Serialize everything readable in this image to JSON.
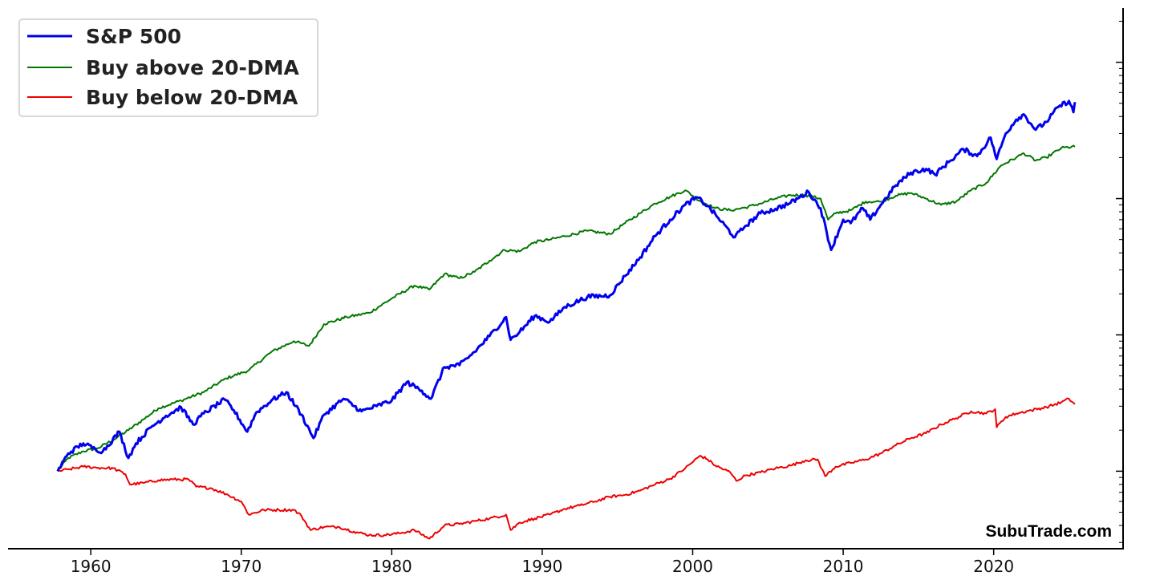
{
  "chart_data": {
    "type": "line",
    "title": "",
    "xlabel": "",
    "ylabel": "",
    "x_range": [
      1954.5,
      2028.6
    ],
    "y_scale": "log",
    "y_range": [
      0.27,
      2500
    ],
    "y_ticks_right": [
      1,
      10,
      100,
      1000
    ],
    "y_tick_labels_shown": false,
    "x_ticks": [
      1960,
      1970,
      1980,
      1990,
      2000,
      2010,
      2020
    ],
    "x_tick_labels": [
      "1960",
      "1970",
      "1980",
      "1990",
      "2000",
      "2010",
      "2020"
    ],
    "grid": false,
    "legend_position": "top-left",
    "watermark": "SubuTrade.com",
    "series": [
      {
        "name": "S&P 500",
        "color": "#0000ee",
        "line_weight": "thick",
        "points": [
          [
            1957.8,
            1.0
          ],
          [
            1958.5,
            1.35
          ],
          [
            1959.5,
            1.6
          ],
          [
            1960.3,
            1.45
          ],
          [
            1960.8,
            1.4
          ],
          [
            1961.9,
            1.95
          ],
          [
            1962.5,
            1.25
          ],
          [
            1963.0,
            1.6
          ],
          [
            1964.0,
            2.1
          ],
          [
            1965.0,
            2.55
          ],
          [
            1966.0,
            2.95
          ],
          [
            1966.8,
            2.2
          ],
          [
            1967.5,
            2.65
          ],
          [
            1968.9,
            3.35
          ],
          [
            1969.5,
            2.8
          ],
          [
            1970.4,
            1.95
          ],
          [
            1971.0,
            2.7
          ],
          [
            1972.0,
            3.3
          ],
          [
            1973.0,
            3.8
          ],
          [
            1974.0,
            2.6
          ],
          [
            1974.8,
            1.75
          ],
          [
            1975.5,
            2.6
          ],
          [
            1976.8,
            3.4
          ],
          [
            1978.0,
            2.75
          ],
          [
            1979.0,
            3.0
          ],
          [
            1980.0,
            3.3
          ],
          [
            1981.0,
            4.5
          ],
          [
            1982.0,
            3.9
          ],
          [
            1982.6,
            3.4
          ],
          [
            1983.5,
            5.8
          ],
          [
            1984.5,
            6.0
          ],
          [
            1985.5,
            7.5
          ],
          [
            1986.5,
            9.8
          ],
          [
            1987.6,
            13.5
          ],
          [
            1987.9,
            9.2
          ],
          [
            1988.5,
            10.5
          ],
          [
            1989.5,
            13.8
          ],
          [
            1990.5,
            12.5
          ],
          [
            1991.5,
            16.0
          ],
          [
            1993.0,
            19.0
          ],
          [
            1994.5,
            19.5
          ],
          [
            1995.5,
            27.0
          ],
          [
            1996.5,
            37.0
          ],
          [
            1997.5,
            53.0
          ],
          [
            1998.5,
            70.0
          ],
          [
            1999.5,
            90.0
          ],
          [
            2000.3,
            102.0
          ],
          [
            2001.0,
            88.0
          ],
          [
            2001.7,
            72.0
          ],
          [
            2002.8,
            52.0
          ],
          [
            2003.5,
            63.0
          ],
          [
            2004.5,
            78.0
          ],
          [
            2005.5,
            84.0
          ],
          [
            2006.5,
            93.0
          ],
          [
            2007.7,
            112.0
          ],
          [
            2008.5,
            85.0
          ],
          [
            2009.2,
            42.0
          ],
          [
            2010.0,
            70.0
          ],
          [
            2010.5,
            66.0
          ],
          [
            2011.3,
            85.0
          ],
          [
            2011.8,
            70.0
          ],
          [
            2012.5,
            90.0
          ],
          [
            2013.5,
            125.0
          ],
          [
            2014.5,
            155.0
          ],
          [
            2015.5,
            165.0
          ],
          [
            2016.1,
            150.0
          ],
          [
            2017.0,
            185.0
          ],
          [
            2018.0,
            230.0
          ],
          [
            2018.9,
            205.0
          ],
          [
            2019.8,
            280.0
          ],
          [
            2020.2,
            195.0
          ],
          [
            2020.8,
            300.0
          ],
          [
            2021.5,
            380.0
          ],
          [
            2022.0,
            415.0
          ],
          [
            2022.8,
            320.0
          ],
          [
            2023.5,
            365.0
          ],
          [
            2024.3,
            470.0
          ],
          [
            2025.0,
            520.0
          ],
          [
            2025.3,
            430.0
          ],
          [
            2025.4,
            510.0
          ]
        ]
      },
      {
        "name": "Buy above 20-DMA",
        "color": "#007700",
        "line_weight": "normal",
        "points": [
          [
            1957.8,
            1.0
          ],
          [
            1958.5,
            1.25
          ],
          [
            1959.5,
            1.4
          ],
          [
            1960.5,
            1.48
          ],
          [
            1961.5,
            1.7
          ],
          [
            1962.5,
            2.0
          ],
          [
            1963.5,
            2.4
          ],
          [
            1964.5,
            2.9
          ],
          [
            1966.0,
            3.3
          ],
          [
            1967.5,
            3.8
          ],
          [
            1969.0,
            4.8
          ],
          [
            1970.5,
            5.5
          ],
          [
            1972.0,
            7.5
          ],
          [
            1973.5,
            9.0
          ],
          [
            1974.5,
            8.3
          ],
          [
            1975.5,
            12.0
          ],
          [
            1977.0,
            13.5
          ],
          [
            1978.5,
            14.5
          ],
          [
            1980.0,
            18.5
          ],
          [
            1981.5,
            23.0
          ],
          [
            1982.5,
            21.5
          ],
          [
            1983.5,
            28.0
          ],
          [
            1984.5,
            26.0
          ],
          [
            1985.5,
            29.0
          ],
          [
            1986.5,
            35.0
          ],
          [
            1987.5,
            42.0
          ],
          [
            1988.5,
            41.0
          ],
          [
            1989.5,
            48.0
          ],
          [
            1990.5,
            50.0
          ],
          [
            1991.5,
            53.0
          ],
          [
            1993.0,
            58.0
          ],
          [
            1994.5,
            55.0
          ],
          [
            1995.5,
            66.0
          ],
          [
            1996.5,
            78.0
          ],
          [
            1997.5,
            92.0
          ],
          [
            1998.5,
            103.0
          ],
          [
            1999.5,
            115.0
          ],
          [
            2000.5,
            96.0
          ],
          [
            2001.5,
            85.0
          ],
          [
            2002.5,
            82.0
          ],
          [
            2003.5,
            86.0
          ],
          [
            2004.5,
            92.0
          ],
          [
            2005.5,
            100.0
          ],
          [
            2006.5,
            106.0
          ],
          [
            2007.5,
            106.0
          ],
          [
            2008.5,
            100.0
          ],
          [
            2009.0,
            70.0
          ],
          [
            2009.5,
            78.0
          ],
          [
            2010.5,
            82.0
          ],
          [
            2011.5,
            95.0
          ],
          [
            2012.5,
            95.0
          ],
          [
            2013.5,
            105.0
          ],
          [
            2014.5,
            110.0
          ],
          [
            2015.5,
            100.0
          ],
          [
            2016.5,
            90.0
          ],
          [
            2017.5,
            95.0
          ],
          [
            2018.5,
            115.0
          ],
          [
            2019.5,
            130.0
          ],
          [
            2020.5,
            175.0
          ],
          [
            2021.5,
            200.0
          ],
          [
            2022.0,
            215.0
          ],
          [
            2022.8,
            190.0
          ],
          [
            2023.5,
            200.0
          ],
          [
            2024.5,
            235.0
          ],
          [
            2025.4,
            240.0
          ]
        ]
      },
      {
        "name": "Buy below 20-DMA",
        "color": "#ee0000",
        "line_weight": "normal",
        "points": [
          [
            1957.8,
            1.0
          ],
          [
            1958.5,
            1.03
          ],
          [
            1959.5,
            1.08
          ],
          [
            1960.5,
            1.06
          ],
          [
            1961.5,
            1.05
          ],
          [
            1962.3,
            0.95
          ],
          [
            1962.6,
            0.8
          ],
          [
            1963.5,
            0.82
          ],
          [
            1964.5,
            0.86
          ],
          [
            1965.5,
            0.87
          ],
          [
            1966.5,
            0.87
          ],
          [
            1967.0,
            0.77
          ],
          [
            1968.0,
            0.75
          ],
          [
            1969.0,
            0.68
          ],
          [
            1970.0,
            0.6
          ],
          [
            1970.5,
            0.48
          ],
          [
            1971.5,
            0.52
          ],
          [
            1972.5,
            0.52
          ],
          [
            1973.5,
            0.52
          ],
          [
            1974.0,
            0.47
          ],
          [
            1974.6,
            0.37
          ],
          [
            1975.5,
            0.39
          ],
          [
            1976.5,
            0.39
          ],
          [
            1977.5,
            0.36
          ],
          [
            1978.5,
            0.34
          ],
          [
            1979.5,
            0.34
          ],
          [
            1980.5,
            0.35
          ],
          [
            1981.5,
            0.37
          ],
          [
            1982.5,
            0.32
          ],
          [
            1983.5,
            0.4
          ],
          [
            1984.5,
            0.41
          ],
          [
            1985.5,
            0.43
          ],
          [
            1986.5,
            0.45
          ],
          [
            1987.6,
            0.48
          ],
          [
            1987.9,
            0.37
          ],
          [
            1988.5,
            0.42
          ],
          [
            1989.5,
            0.45
          ],
          [
            1990.5,
            0.48
          ],
          [
            1991.5,
            0.53
          ],
          [
            1992.5,
            0.56
          ],
          [
            1993.5,
            0.6
          ],
          [
            1994.5,
            0.65
          ],
          [
            1995.5,
            0.67
          ],
          [
            1996.5,
            0.72
          ],
          [
            1997.5,
            0.8
          ],
          [
            1998.5,
            0.88
          ],
          [
            1999.5,
            1.05
          ],
          [
            2000.5,
            1.3
          ],
          [
            2001.0,
            1.22
          ],
          [
            2001.5,
            1.1
          ],
          [
            2002.5,
            0.98
          ],
          [
            2002.9,
            0.85
          ],
          [
            2003.5,
            0.93
          ],
          [
            2004.5,
            0.98
          ],
          [
            2005.5,
            1.05
          ],
          [
            2006.5,
            1.1
          ],
          [
            2007.5,
            1.2
          ],
          [
            2008.3,
            1.22
          ],
          [
            2008.8,
            0.92
          ],
          [
            2009.5,
            1.08
          ],
          [
            2010.5,
            1.15
          ],
          [
            2011.5,
            1.22
          ],
          [
            2012.5,
            1.35
          ],
          [
            2013.5,
            1.55
          ],
          [
            2014.5,
            1.75
          ],
          [
            2015.5,
            1.9
          ],
          [
            2016.5,
            2.2
          ],
          [
            2017.5,
            2.45
          ],
          [
            2018.5,
            2.75
          ],
          [
            2019.5,
            2.65
          ],
          [
            2020.1,
            2.85
          ],
          [
            2020.2,
            2.1
          ],
          [
            2020.8,
            2.5
          ],
          [
            2021.5,
            2.65
          ],
          [
            2022.5,
            2.8
          ],
          [
            2023.5,
            2.95
          ],
          [
            2024.5,
            3.2
          ],
          [
            2025.0,
            3.4
          ],
          [
            2025.4,
            3.1
          ]
        ]
      }
    ]
  }
}
